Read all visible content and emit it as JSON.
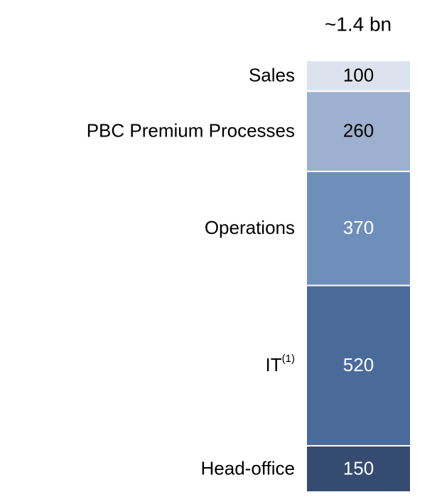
{
  "chart_data": {
    "type": "stacked-bar",
    "total_label": "~1.4 bn",
    "series": [
      {
        "name": "Sales",
        "color": "#dde3ee",
        "values": [
          100
        ]
      },
      {
        "name": "PBC Premium Processes",
        "color": "#9eb0cf",
        "values": [
          260
        ]
      },
      {
        "name": "Operations",
        "color": "#6f8fbb",
        "values": [
          370
        ]
      },
      {
        "name": "IT",
        "note": "(1)",
        "color": "#4a6a9a",
        "values": [
          520
        ]
      },
      {
        "name": "Head-office",
        "color": "#354c70",
        "values": [
          150
        ]
      }
    ]
  }
}
